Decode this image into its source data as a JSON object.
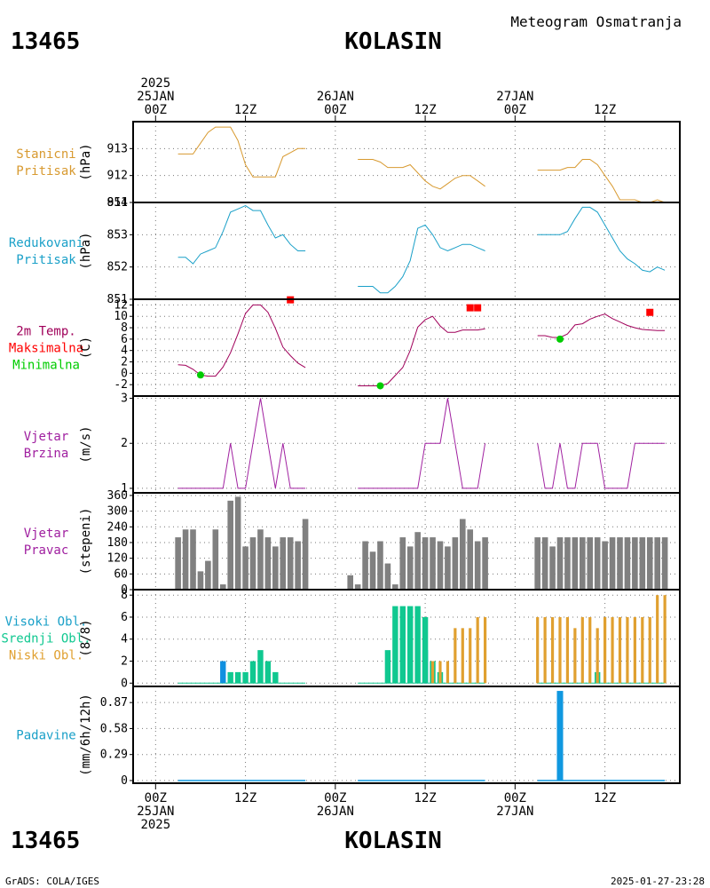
{
  "header": {
    "station_id": "13465",
    "station_name": "KOLASIN",
    "product": "Meteogram Osmatranja"
  },
  "footer": {
    "source": "GrADS: COLA/IGES",
    "timestamp": "2025-01-27-23:28"
  },
  "time_axis": {
    "top": [
      {
        "x": 0,
        "lines": [
          "2025",
          "25JAN",
          "00Z"
        ]
      },
      {
        "x": 12,
        "lines": [
          "12Z"
        ]
      },
      {
        "x": 24,
        "lines": [
          "26JAN",
          "00Z"
        ]
      },
      {
        "x": 36,
        "lines": [
          "12Z"
        ]
      },
      {
        "x": 48,
        "lines": [
          "27JAN",
          "00Z"
        ]
      },
      {
        "x": 60,
        "lines": [
          "12Z"
        ]
      }
    ],
    "bottom": [
      {
        "x": 0,
        "lines": [
          "00Z",
          "25JAN",
          "2025"
        ]
      },
      {
        "x": 12,
        "lines": [
          "12Z"
        ]
      },
      {
        "x": 24,
        "lines": [
          "00Z",
          "26JAN"
        ]
      },
      {
        "x": 36,
        "lines": [
          "12Z"
        ]
      },
      {
        "x": 48,
        "lines": [
          "00Z",
          "27JAN"
        ]
      },
      {
        "x": 60,
        "lines": [
          "12Z"
        ]
      }
    ],
    "range_hours": [
      -3,
      70
    ]
  },
  "colors": {
    "pressure": "#d89a30",
    "reduced": "#1aa0c8",
    "temp": "#a0005a",
    "tmax": "#ff0000",
    "tmin": "#00cc00",
    "wind": "#a020a0",
    "direction": "#808080",
    "cloud_high": "#1090e0",
    "cloud_mid": "#10c890",
    "cloud_low": "#e0a030",
    "precip": "#1098e0"
  },
  "chart_data": [
    {
      "type": "line",
      "panel": "pressure",
      "labels": [
        "Stanicni",
        "Pritisak"
      ],
      "unit": "(hPa)",
      "ylim": [
        911,
        914
      ],
      "ticks": [
        911,
        912,
        913
      ],
      "series": [
        {
          "x": [
            3,
            4,
            5,
            6,
            7,
            8,
            9,
            10,
            11,
            12,
            13,
            14,
            15,
            16,
            17,
            18,
            19,
            20
          ],
          "y": [
            912.8,
            912.8,
            912.8,
            913.2,
            913.6,
            913.8,
            913.8,
            913.8,
            913.3,
            912.4,
            911.95,
            911.95,
            911.95,
            911.95,
            912.7,
            912.85,
            913.0,
            913.0
          ]
        },
        {
          "x": [
            27,
            28,
            29,
            30,
            31,
            32,
            33,
            34,
            35,
            36,
            37,
            38,
            39,
            40,
            41,
            42,
            43,
            44
          ],
          "y": [
            912.6,
            912.6,
            912.6,
            912.5,
            912.3,
            912.3,
            912.3,
            912.4,
            912.1,
            911.8,
            911.6,
            911.5,
            911.7,
            911.9,
            912.0,
            912.0,
            911.8,
            911.6
          ]
        },
        {
          "x": [
            51,
            52,
            53,
            54,
            55,
            56,
            57,
            58,
            59,
            60,
            61,
            62,
            63,
            64,
            65,
            66,
            67,
            68
          ],
          "y": [
            912.2,
            912.2,
            912.2,
            912.2,
            912.3,
            912.3,
            912.6,
            912.6,
            912.4,
            912.0,
            911.6,
            911.1,
            911.1,
            911.1,
            911.0,
            911.0,
            911.1,
            911.0
          ]
        }
      ]
    },
    {
      "type": "line",
      "panel": "reduced_pressure",
      "labels": [
        "Redukovani",
        "Pritisak"
      ],
      "unit": "(hPa)",
      "ylim": [
        851,
        854
      ],
      "ticks": [
        851,
        852,
        853,
        854
      ],
      "series": [
        {
          "x": [
            3,
            4,
            5,
            6,
            7,
            8,
            9,
            10,
            11,
            12,
            13,
            14,
            15,
            16,
            17,
            18,
            19,
            20
          ],
          "y": [
            852.3,
            852.3,
            852.1,
            852.4,
            852.5,
            852.6,
            853.1,
            853.7,
            853.8,
            853.9,
            853.75,
            853.75,
            853.3,
            852.9,
            853.0,
            852.7,
            852.5,
            852.5
          ]
        },
        {
          "x": [
            27,
            28,
            29,
            30,
            31,
            32,
            33,
            34,
            35,
            36,
            37,
            38,
            39,
            40,
            41,
            42,
            43,
            44
          ],
          "y": [
            851.4,
            851.4,
            851.4,
            851.2,
            851.2,
            851.4,
            851.7,
            852.2,
            853.2,
            853.3,
            853.0,
            852.6,
            852.5,
            852.6,
            852.7,
            852.7,
            852.6,
            852.5
          ]
        },
        {
          "x": [
            51,
            52,
            53,
            54,
            55,
            56,
            57,
            58,
            59,
            60,
            61,
            62,
            63,
            64,
            65,
            66,
            67,
            68
          ],
          "y": [
            853.0,
            853.0,
            853.0,
            853.0,
            853.1,
            853.5,
            853.85,
            853.85,
            853.7,
            853.3,
            852.9,
            852.5,
            852.25,
            852.1,
            851.9,
            851.85,
            852.0,
            851.9
          ]
        }
      ]
    },
    {
      "type": "line",
      "panel": "temperature",
      "labels": [
        "2m Temp.",
        "Maksimalna",
        "Minimalna"
      ],
      "unit": "(C)",
      "ylim": [
        -4,
        13
      ],
      "ticks": [
        -2,
        0,
        2,
        4,
        6,
        8,
        10,
        12
      ],
      "series": [
        {
          "x": [
            3,
            4,
            5,
            6,
            7,
            8,
            9,
            10,
            11,
            12,
            13,
            14,
            15,
            16,
            17,
            18,
            19,
            20
          ],
          "y": [
            1.5,
            1.4,
            0.7,
            -0.3,
            -0.5,
            -0.5,
            1.1,
            3.6,
            6.9,
            10.5,
            12.0,
            12.0,
            10.7,
            7.9,
            4.6,
            3.1,
            1.8,
            1.0
          ]
        },
        {
          "x": [
            27,
            28,
            29,
            30,
            31,
            32,
            33,
            34,
            35,
            36,
            37,
            38,
            39,
            40,
            41,
            42,
            43,
            44
          ],
          "y": [
            -2.2,
            -2.2,
            -2.2,
            -2.2,
            -1.8,
            -0.4,
            1.0,
            4.0,
            8.1,
            9.4,
            10.0,
            8.3,
            7.2,
            7.2,
            7.6,
            7.6,
            7.6,
            7.8
          ]
        },
        {
          "x": [
            51,
            52,
            53,
            54,
            55,
            56,
            57,
            58,
            59,
            60,
            61,
            62,
            63,
            64,
            65,
            66,
            67,
            68
          ],
          "y": [
            6.6,
            6.6,
            6.3,
            6.3,
            6.9,
            8.5,
            8.7,
            9.5,
            10.0,
            10.4,
            9.6,
            9.0,
            8.4,
            8.0,
            7.7,
            7.6,
            7.5,
            7.5
          ]
        }
      ],
      "tmax": [
        {
          "x": 18,
          "y": 12.9
        },
        {
          "x": 42,
          "y": 11.5
        },
        {
          "x": 43,
          "y": 11.5
        },
        {
          "x": 66,
          "y": 10.7
        }
      ],
      "tmin": [
        {
          "x": 6,
          "y": -0.3
        },
        {
          "x": 30,
          "y": -2.2
        },
        {
          "x": 54,
          "y": 6.0
        }
      ]
    },
    {
      "type": "line",
      "panel": "wind_speed",
      "labels": [
        "Vjetar",
        "Brzina"
      ],
      "unit": "(m/s)",
      "ylim": [
        0.9,
        3.05
      ],
      "ticks": [
        1,
        2,
        3
      ],
      "series": [
        {
          "x": [
            3,
            4,
            5,
            6,
            7,
            8,
            9,
            10,
            11,
            12,
            13,
            14,
            15,
            16,
            17,
            18,
            19,
            20
          ],
          "y": [
            1,
            1,
            1,
            1,
            1,
            1,
            1,
            2,
            1,
            1,
            2,
            3,
            2,
            1,
            2,
            1,
            1,
            1
          ]
        },
        {
          "x": [
            27,
            28,
            29,
            30,
            31,
            32,
            33,
            34,
            35,
            36,
            37,
            38,
            39,
            40,
            41,
            42,
            43,
            44
          ],
          "y": [
            1,
            1,
            1,
            1,
            1,
            1,
            1,
            1,
            1,
            2,
            2,
            2,
            3,
            2,
            1,
            1,
            1,
            2
          ]
        },
        {
          "x": [
            51,
            52,
            53,
            54,
            55,
            56,
            57,
            58,
            59,
            60,
            61,
            62,
            63,
            64,
            65,
            66,
            67,
            68
          ],
          "y": [
            2,
            1,
            1,
            2,
            1,
            1,
            2,
            2,
            2,
            1,
            1,
            1,
            1,
            2,
            2,
            2,
            2,
            2
          ]
        }
      ]
    },
    {
      "type": "bar",
      "panel": "wind_direction",
      "labels": [
        "Vjetar",
        "Pravac"
      ],
      "unit": "(stepeni)",
      "ylim": [
        0,
        370
      ],
      "ticks": [
        0,
        60,
        120,
        180,
        240,
        300,
        360
      ],
      "x": [
        3,
        4,
        5,
        6,
        7,
        8,
        9,
        10,
        11,
        12,
        13,
        14,
        15,
        16,
        17,
        18,
        19,
        20,
        26,
        27,
        28,
        29,
        30,
        31,
        32,
        33,
        34,
        35,
        36,
        37,
        38,
        39,
        40,
        41,
        42,
        43,
        44,
        51,
        52,
        53,
        54,
        55,
        56,
        57,
        58,
        59,
        60,
        61,
        62,
        63,
        64,
        65,
        66,
        67,
        68
      ],
      "values": [
        200,
        230,
        230,
        70,
        110,
        230,
        20,
        340,
        355,
        165,
        200,
        230,
        200,
        165,
        200,
        200,
        185,
        270,
        55,
        20,
        185,
        145,
        185,
        100,
        20,
        200,
        165,
        220,
        200,
        200,
        185,
        165,
        200,
        270,
        230,
        185,
        200,
        200,
        200,
        165,
        200,
        200,
        200,
        200,
        200,
        200,
        185,
        200,
        200,
        200,
        200,
        200,
        200,
        200,
        200
      ]
    },
    {
      "type": "bar",
      "panel": "clouds",
      "labels": [
        "Visoki Obl.",
        "Srednji Obl.",
        "Niski Obl."
      ],
      "unit": "(8/8)",
      "ylim": [
        -0.3,
        8.5
      ],
      "ticks": [
        0,
        2,
        4,
        6,
        8
      ],
      "series": [
        {
          "name": "Visoki Obl.",
          "x": [
            9,
            36
          ],
          "values": [
            2,
            3
          ]
        },
        {
          "name": "Srednji Obl.",
          "x": [
            10,
            11,
            12,
            13,
            14,
            15,
            16,
            31,
            32,
            33,
            34,
            35,
            36,
            37,
            38,
            59
          ],
          "values": [
            1,
            1,
            1,
            2,
            3,
            2,
            1,
            3,
            7,
            7,
            7,
            7,
            6,
            2,
            1,
            1
          ]
        },
        {
          "name": "Niski Obl.",
          "x": [
            37,
            38,
            39,
            40,
            41,
            42,
            43,
            44,
            51,
            52,
            53,
            54,
            55,
            56,
            57,
            58,
            59,
            60,
            61,
            62,
            63,
            64,
            65,
            66,
            67,
            68
          ],
          "values": [
            2,
            2,
            2,
            5,
            5,
            5,
            6,
            6,
            6,
            6,
            6,
            6,
            6,
            5,
            6,
            6,
            5,
            6,
            6,
            6,
            6,
            6,
            6,
            6,
            8,
            8
          ]
        }
      ]
    },
    {
      "type": "bar",
      "panel": "precipitation",
      "labels": [
        "Padavine"
      ],
      "unit": "(mm/6h/12h)",
      "ylim": [
        -0.03,
        1.05
      ],
      "ticks": [
        0,
        0.29,
        0.58,
        0.87
      ],
      "tick_labels": [
        "0",
        "0.29",
        "0.58",
        "0.87"
      ],
      "x": [
        54
      ],
      "values": [
        1.0
      ]
    }
  ]
}
